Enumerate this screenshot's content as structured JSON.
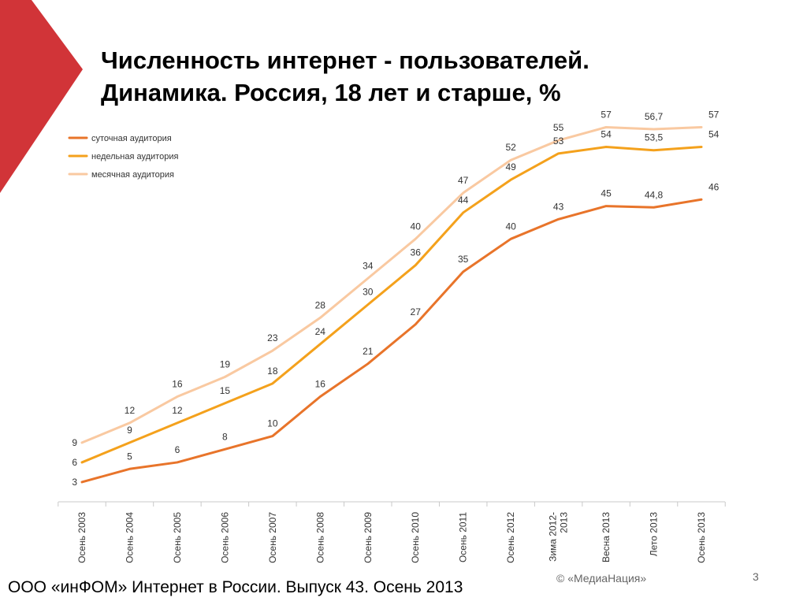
{
  "slide": {
    "title_line1": "Численность интернет - пользователей.",
    "title_line2": "Динамика. Россия, 18 лет и старше, %",
    "footer": "ООО «инФОМ» Интернет в России. Выпуск 43. Осень 2013",
    "copyright": "© «МедиаНация»",
    "page_number": "3",
    "accent_color": "#d13438"
  },
  "chart_data": {
    "type": "line",
    "title": "",
    "xlabel": "",
    "ylabel": "",
    "ylim": [
      0,
      60
    ],
    "grid": false,
    "legend_position": "top-left",
    "categories": [
      "Осень 2003",
      "Осень 2004",
      "Осень 2005",
      "Осень 2006",
      "Осень 2007",
      "Осень 2008",
      "Осень 2009",
      "Осень 2010",
      "Осень 2011",
      "Осень 2012",
      "Зима 2012-2013",
      "Весна 2013",
      "Лето 2013",
      "Осень 2013"
    ],
    "series": [
      {
        "name": "суточная аудитория",
        "color": "#e8742a",
        "values": [
          3,
          5,
          6,
          8,
          10,
          16,
          21,
          27,
          35,
          40,
          43,
          45,
          44.8,
          46
        ],
        "labels": [
          "3",
          "5",
          "6",
          "8",
          "10",
          "16",
          "21",
          "27",
          "35",
          "40",
          "43",
          "45",
          "44,8",
          "46"
        ]
      },
      {
        "name": "недельная аудитория",
        "color": "#f4a11c",
        "values": [
          6,
          9,
          12,
          15,
          18,
          24,
          30,
          36,
          44,
          49,
          53,
          54,
          53.5,
          54
        ],
        "labels": [
          "6",
          "9",
          "12",
          "15",
          "18",
          "24",
          "30",
          "36",
          "44",
          "49",
          "53",
          "54",
          "53,5",
          "54"
        ]
      },
      {
        "name": "месячная аудитория",
        "color": "#f9c9a1",
        "values": [
          9,
          12,
          16,
          19,
          23,
          28,
          34,
          40,
          47,
          52,
          55,
          57,
          56.7,
          57
        ],
        "labels": [
          "9",
          "12",
          "16",
          "19",
          "23",
          "28",
          "34",
          "40",
          "47",
          "52",
          "55",
          "57",
          "56,7",
          "57"
        ]
      }
    ]
  }
}
